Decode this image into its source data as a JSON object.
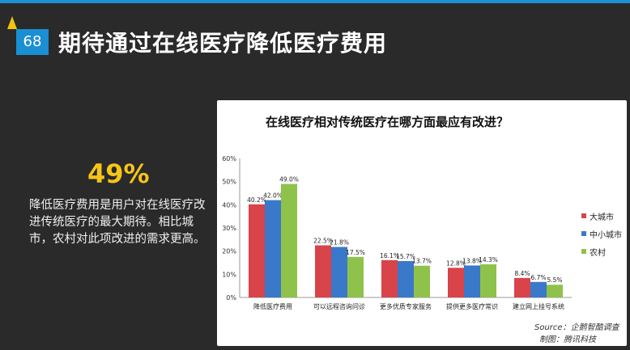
{
  "slide": {
    "number": "68",
    "title": "期待通过在线医疗降低医疗费用",
    "highlight_value": "49%",
    "description": "降低医疗费用是用户对在线医疗改进传统医疗的最大期待。相比城市，农村对此项改进的需求更高。"
  },
  "chart_data": {
    "type": "bar",
    "title": "在线医疗相对传统医疗在哪方面最应有改进？",
    "categories": [
      "降低医疗费用",
      "可以远程咨询问诊",
      "更多优质专家服务",
      "提供更多医疗常识",
      "建立网上挂号系统"
    ],
    "series": [
      {
        "name": "大城市",
        "color": "#d9434a",
        "values": [
          40.2,
          22.5,
          16.1,
          12.8,
          8.4
        ]
      },
      {
        "name": "中小城市",
        "color": "#3a78c9",
        "values": [
          42.0,
          21.8,
          15.7,
          13.8,
          6.7
        ]
      },
      {
        "name": "农村",
        "color": "#8fc24a",
        "values": [
          49.0,
          17.5,
          13.7,
          14.3,
          5.5
        ]
      }
    ],
    "ylim": [
      0,
      60
    ],
    "yticks": [
      "0%",
      "10%",
      "20%",
      "30%",
      "40%",
      "50%",
      "60%"
    ],
    "grid": false,
    "legend_position": "right",
    "source": "Source：企鹅智酷调查",
    "maker": "制图：腾讯科技"
  }
}
